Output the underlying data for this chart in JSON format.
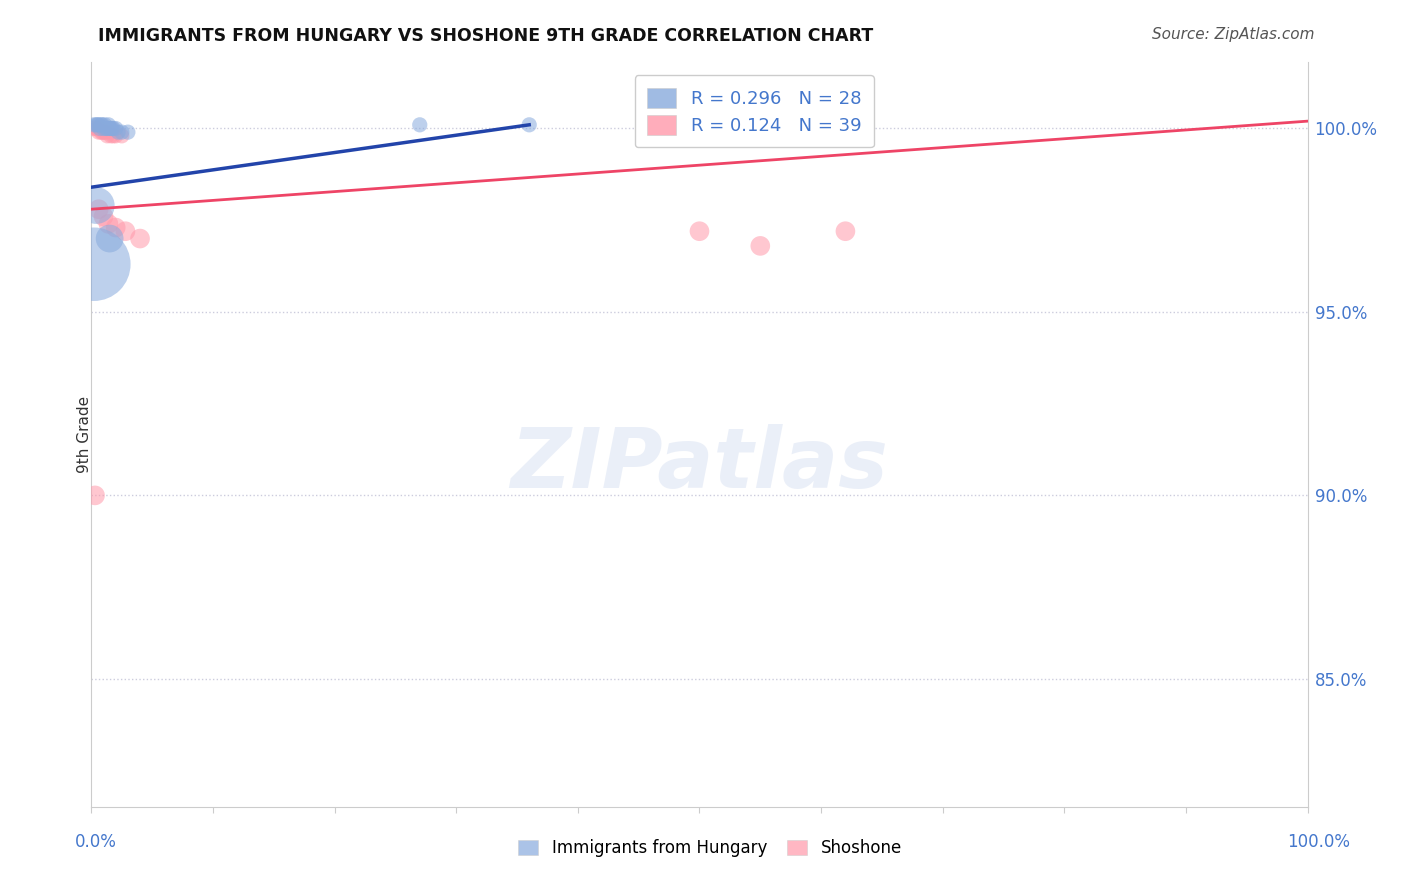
{
  "title": "IMMIGRANTS FROM HUNGARY VS SHOSHONE 9TH GRADE CORRELATION CHART",
  "source": "Source: ZipAtlas.com",
  "ylabel": "9th Grade",
  "ytick_labels": [
    "100.0%",
    "95.0%",
    "90.0%",
    "85.0%"
  ],
  "ytick_values": [
    1.0,
    0.95,
    0.9,
    0.85
  ],
  "xlim": [
    0.0,
    1.0
  ],
  "ylim": [
    0.815,
    1.018
  ],
  "legend_r_blue": "R = 0.296",
  "legend_n_blue": "N = 28",
  "legend_r_pink": "R = 0.124",
  "legend_n_pink": "N = 39",
  "blue_color": "#88AADD",
  "pink_color": "#FF99AA",
  "blue_line_color": "#2244AA",
  "pink_line_color": "#EE4466",
  "blue_points": [
    [
      0.002,
      1.001
    ],
    [
      0.004,
      1.001
    ],
    [
      0.005,
      1.001
    ],
    [
      0.006,
      1.001
    ],
    [
      0.007,
      1.0
    ],
    [
      0.008,
      1.001
    ],
    [
      0.009,
      1.001
    ],
    [
      0.01,
      1.0
    ],
    [
      0.011,
      1.001
    ],
    [
      0.012,
      1.0
    ],
    [
      0.013,
      1.0
    ],
    [
      0.014,
      1.001
    ],
    [
      0.015,
      1.0
    ],
    [
      0.016,
      1.0
    ],
    [
      0.017,
      1.0
    ],
    [
      0.018,
      1.0
    ],
    [
      0.02,
      1.0
    ],
    [
      0.022,
      0.999
    ],
    [
      0.025,
      0.999
    ],
    [
      0.03,
      0.999
    ],
    [
      0.004,
      0.979
    ],
    [
      0.015,
      0.97
    ],
    [
      0.002,
      0.963
    ],
    [
      0.27,
      1.001
    ],
    [
      0.36,
      1.001
    ]
  ],
  "blue_sizes": [
    120,
    120,
    120,
    120,
    120,
    120,
    120,
    120,
    120,
    120,
    120,
    120,
    120,
    120,
    120,
    120,
    120,
    120,
    120,
    120,
    700,
    400,
    2800,
    120,
    120
  ],
  "pink_points": [
    [
      0.002,
      1.0
    ],
    [
      0.004,
      1.0
    ],
    [
      0.005,
      1.0
    ],
    [
      0.006,
      0.999
    ],
    [
      0.007,
      1.0
    ],
    [
      0.008,
      0.999
    ],
    [
      0.009,
      0.999
    ],
    [
      0.01,
      0.999
    ],
    [
      0.011,
      0.999
    ],
    [
      0.012,
      0.999
    ],
    [
      0.013,
      0.998
    ],
    [
      0.015,
      0.999
    ],
    [
      0.016,
      0.998
    ],
    [
      0.018,
      0.998
    ],
    [
      0.02,
      0.998
    ],
    [
      0.025,
      0.998
    ],
    [
      0.006,
      0.978
    ],
    [
      0.01,
      0.976
    ],
    [
      0.014,
      0.974
    ],
    [
      0.02,
      0.973
    ],
    [
      0.028,
      0.972
    ],
    [
      0.04,
      0.97
    ],
    [
      0.003,
      0.9
    ],
    [
      0.5,
      0.972
    ],
    [
      0.62,
      0.972
    ],
    [
      0.55,
      0.968
    ]
  ],
  "pink_sizes": [
    120,
    120,
    120,
    120,
    120,
    120,
    120,
    120,
    120,
    120,
    120,
    120,
    120,
    120,
    120,
    120,
    200,
    200,
    200,
    200,
    200,
    200,
    200,
    200,
    200,
    200
  ],
  "blue_trend_x": [
    0.0,
    0.36
  ],
  "blue_trend_y": [
    0.984,
    1.001
  ],
  "pink_trend_x": [
    0.0,
    1.0
  ],
  "pink_trend_y": [
    0.978,
    1.002
  ]
}
